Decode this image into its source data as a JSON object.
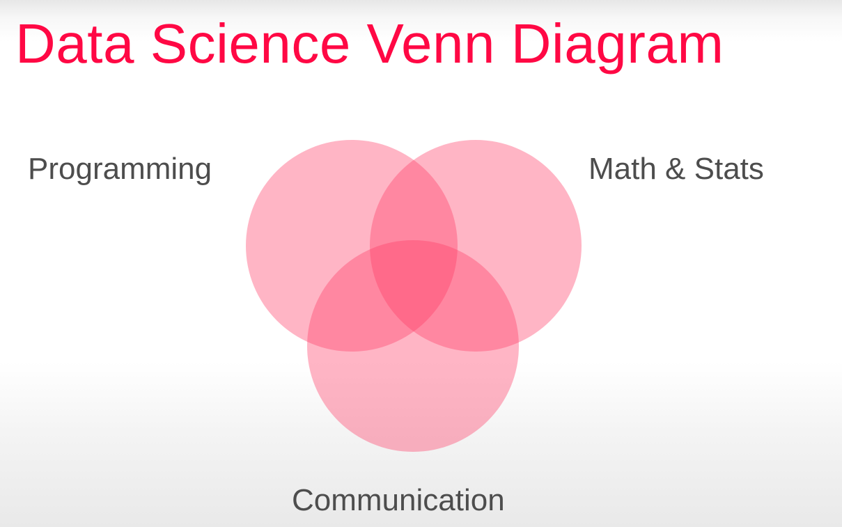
{
  "slide": {
    "title": "Data Science Venn Diagram",
    "title_color": "#ff0844",
    "label_color": "#4d4d4d",
    "circle_color": "#ff3d66",
    "circles": [
      {
        "label": "Programming"
      },
      {
        "label": "Math & Stats"
      },
      {
        "label": "Communication"
      }
    ]
  }
}
